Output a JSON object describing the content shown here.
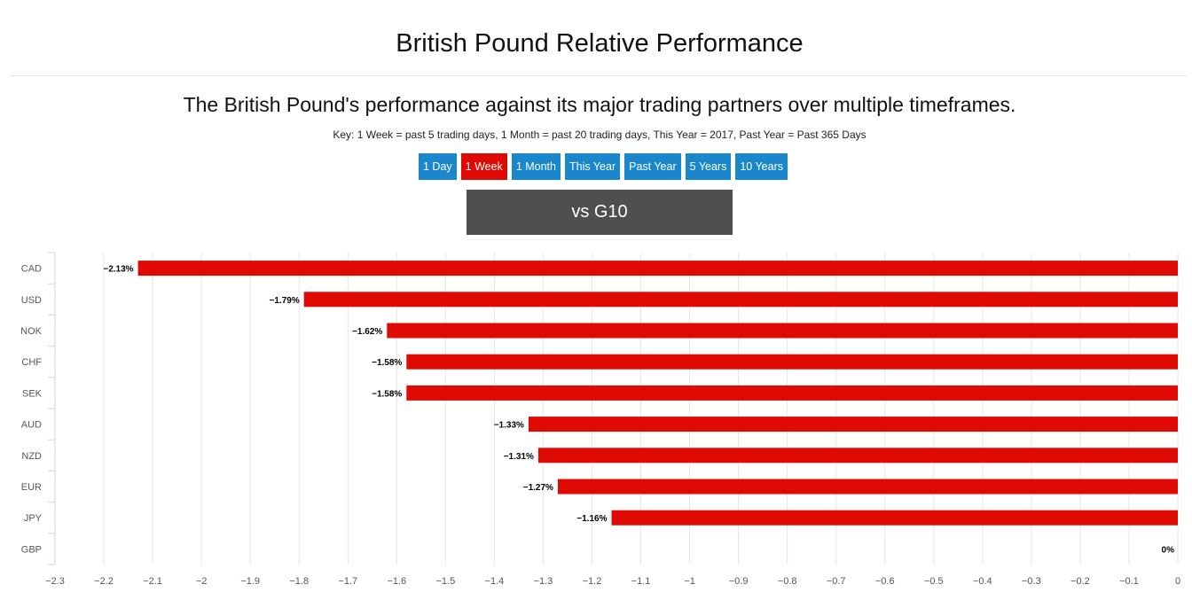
{
  "page": {
    "title": "British Pound Relative Performance",
    "subtitle": "The British Pound's performance against its major trading partners over multiple timeframes.",
    "key": "Key: 1 Week = past 5 trading days, 1 Month = past 20 trading days, This Year = 2017, Past Year = Past 365 Days",
    "tabs": [
      {
        "label": "1 Day",
        "active": false
      },
      {
        "label": "1 Week",
        "active": true
      },
      {
        "label": "1 Month",
        "active": false
      },
      {
        "label": "This Year",
        "active": false
      },
      {
        "label": "Past Year",
        "active": false
      },
      {
        "label": "5 Years",
        "active": false
      },
      {
        "label": "10 Years",
        "active": false
      }
    ],
    "group_label": "vs G10"
  },
  "colors": {
    "bar": "#e00a05",
    "tab": "#1a87cc",
    "tab_active": "#e00a05",
    "group_box": "#4f4f4f"
  },
  "chart_data": {
    "type": "bar",
    "orientation": "horizontal",
    "categories": [
      "CAD",
      "USD",
      "NOK",
      "CHF",
      "SEK",
      "AUD",
      "NZD",
      "EUR",
      "JPY",
      "GBP"
    ],
    "values": [
      -2.13,
      -1.79,
      -1.62,
      -1.58,
      -1.58,
      -1.33,
      -1.31,
      -1.27,
      -1.16,
      0
    ],
    "value_labels": [
      "−2.13%",
      "−1.79%",
      "−1.62%",
      "−1.58%",
      "−1.58%",
      "−1.33%",
      "−1.31%",
      "−1.27%",
      "−1.16%",
      "0%"
    ],
    "xlim": [
      -2.3,
      0
    ],
    "xticks": [
      -2.3,
      -2.2,
      -2.1,
      -2,
      -1.9,
      -1.8,
      -1.7,
      -1.6,
      -1.5,
      -1.4,
      -1.3,
      -1.2,
      -1.1,
      -1,
      -0.9,
      -0.8,
      -0.7,
      -0.6,
      -0.5,
      -0.4,
      -0.3,
      -0.2,
      -0.1,
      0
    ],
    "xtick_labels": [
      "−2.3",
      "−2.2",
      "−2.1",
      "−2",
      "−1.9",
      "−1.8",
      "−1.7",
      "−1.6",
      "−1.5",
      "−1.4",
      "−1.3",
      "−1.2",
      "−1.1",
      "−1",
      "−0.9",
      "−0.8",
      "−0.7",
      "−0.6",
      "−0.5",
      "−0.4",
      "−0.3",
      "−0.2",
      "−0.1",
      "0"
    ],
    "grid": true,
    "legend": "none"
  }
}
